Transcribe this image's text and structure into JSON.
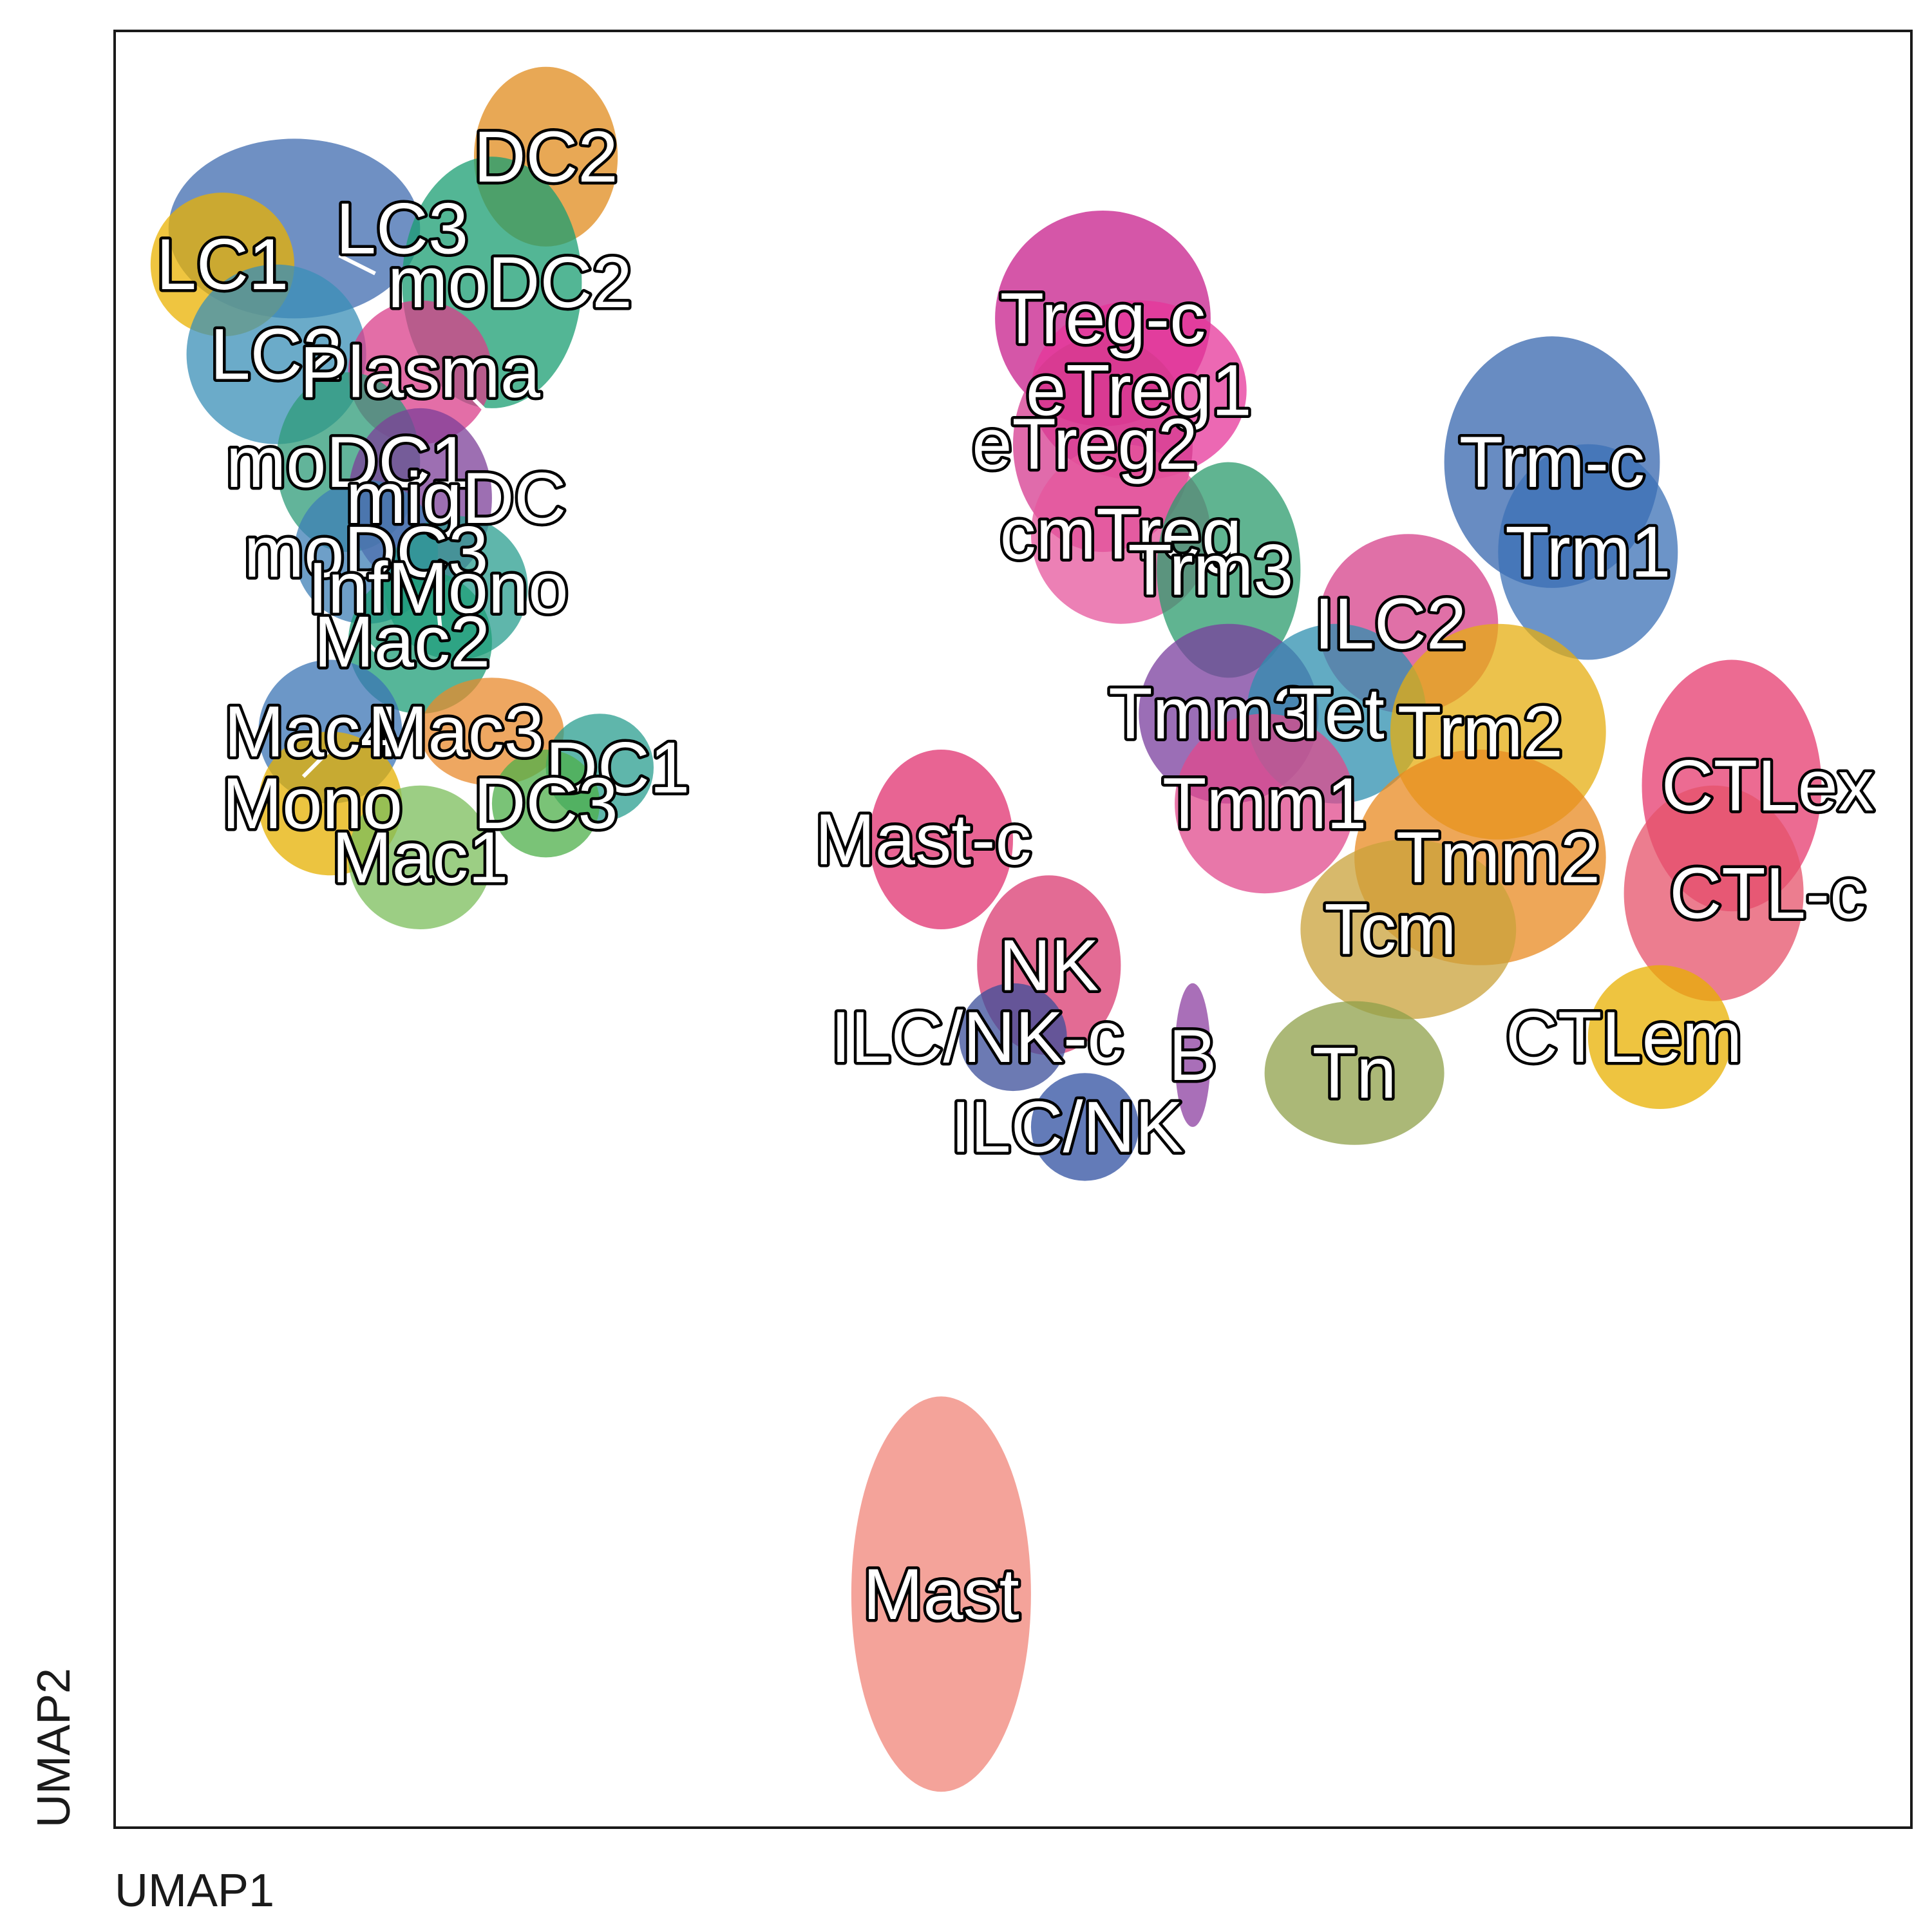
{
  "chart_data": {
    "type": "scatter",
    "title": "",
    "xlabel": "UMAP1",
    "ylabel": "UMAP2",
    "xlim": [
      0,
      100
    ],
    "ylim": [
      0,
      100
    ],
    "grid": false,
    "legend": "none",
    "clusters": [
      {
        "name": "LC3",
        "x": 16,
        "y": 89,
        "color": "#3F6BAF"
      },
      {
        "name": "LC1",
        "x": 6,
        "y": 87,
        "color": "#E9B200"
      },
      {
        "name": "LC2",
        "x": 9,
        "y": 82,
        "color": "#3A8FB7"
      },
      {
        "name": "DC2",
        "x": 24,
        "y": 93,
        "color": "#E08B1C"
      },
      {
        "name": "moDC2",
        "x": 22,
        "y": 86,
        "color": "#1A9D72"
      },
      {
        "name": "Plasma",
        "x": 17,
        "y": 81,
        "color": "#D93D8A"
      },
      {
        "name": "moDC1",
        "x": 13,
        "y": 76,
        "color": "#2D9B78"
      },
      {
        "name": "migDC",
        "x": 19,
        "y": 74,
        "color": "#7C3F98"
      },
      {
        "name": "moDC3",
        "x": 14,
        "y": 71,
        "color": "#3E7FB5"
      },
      {
        "name": "InfMono",
        "x": 18,
        "y": 69,
        "color": "#2A9D8F"
      },
      {
        "name": "Mac2",
        "x": 16,
        "y": 66,
        "color": "#1E9E77"
      },
      {
        "name": "Mac4",
        "x": 11,
        "y": 61,
        "color": "#3B74B4"
      },
      {
        "name": "Mac3",
        "x": 19,
        "y": 61,
        "color": "#E88A2C"
      },
      {
        "name": "DC1",
        "x": 28,
        "y": 59,
        "color": "#2A9D8F"
      },
      {
        "name": "Mono",
        "x": 11,
        "y": 57,
        "color": "#E6B000"
      },
      {
        "name": "DC3",
        "x": 24,
        "y": 57,
        "color": "#4DAF4A"
      },
      {
        "name": "Mac1",
        "x": 17,
        "y": 54,
        "color": "#7BBE5B"
      },
      {
        "name": "Treg-c",
        "x": 55,
        "y": 84,
        "color": "#C71D8B"
      },
      {
        "name": "eTreg1",
        "x": 57,
        "y": 80,
        "color": "#E6369A"
      },
      {
        "name": "eTreg2",
        "x": 54,
        "y": 77,
        "color": "#D63A8F"
      },
      {
        "name": "cmTreg",
        "x": 56,
        "y": 72,
        "color": "#E6559C"
      },
      {
        "name": "Trm3",
        "x": 61,
        "y": 70,
        "color": "#2B9B6C"
      },
      {
        "name": "Trm-c",
        "x": 80,
        "y": 76,
        "color": "#3565AD"
      },
      {
        "name": "Trm1",
        "x": 82,
        "y": 71,
        "color": "#3B70B5"
      },
      {
        "name": "ILC2",
        "x": 71,
        "y": 67,
        "color": "#D6408A"
      },
      {
        "name": "Tmm3",
        "x": 61,
        "y": 62,
        "color": "#7A3D9E"
      },
      {
        "name": "Tet",
        "x": 68,
        "y": 62,
        "color": "#2E8FAF"
      },
      {
        "name": "Trm2",
        "x": 76,
        "y": 61,
        "color": "#E6AE10"
      },
      {
        "name": "Tmm1",
        "x": 64,
        "y": 57,
        "color": "#E04A8C"
      },
      {
        "name": "CTLex",
        "x": 92,
        "y": 58,
        "color": "#E63A6E"
      },
      {
        "name": "Tmm2",
        "x": 77,
        "y": 54,
        "color": "#E88A20"
      },
      {
        "name": "Mast-c",
        "x": 45,
        "y": 55,
        "color": "#E0306F"
      },
      {
        "name": "CTL-c",
        "x": 92,
        "y": 52,
        "color": "#E6526A"
      },
      {
        "name": "Tcm",
        "x": 71,
        "y": 50,
        "color": "#C9A13A"
      },
      {
        "name": "NK",
        "x": 52,
        "y": 48,
        "color": "#D93A70"
      },
      {
        "name": "CTLem",
        "x": 84,
        "y": 44,
        "color": "#E8B000"
      },
      {
        "name": "B",
        "x": 60,
        "y": 43,
        "color": "#8C3FA0"
      },
      {
        "name": "Tn",
        "x": 69,
        "y": 42,
        "color": "#8FA04A"
      },
      {
        "name": "ILC/NK-c",
        "x": 48,
        "y": 44,
        "color": "#3B4D9A"
      },
      {
        "name": "ILC/NK",
        "x": 53,
        "y": 39,
        "color": "#2F4FA0"
      },
      {
        "name": "Mast",
        "x": 46,
        "y": 13,
        "color": "#F08478"
      }
    ]
  }
}
